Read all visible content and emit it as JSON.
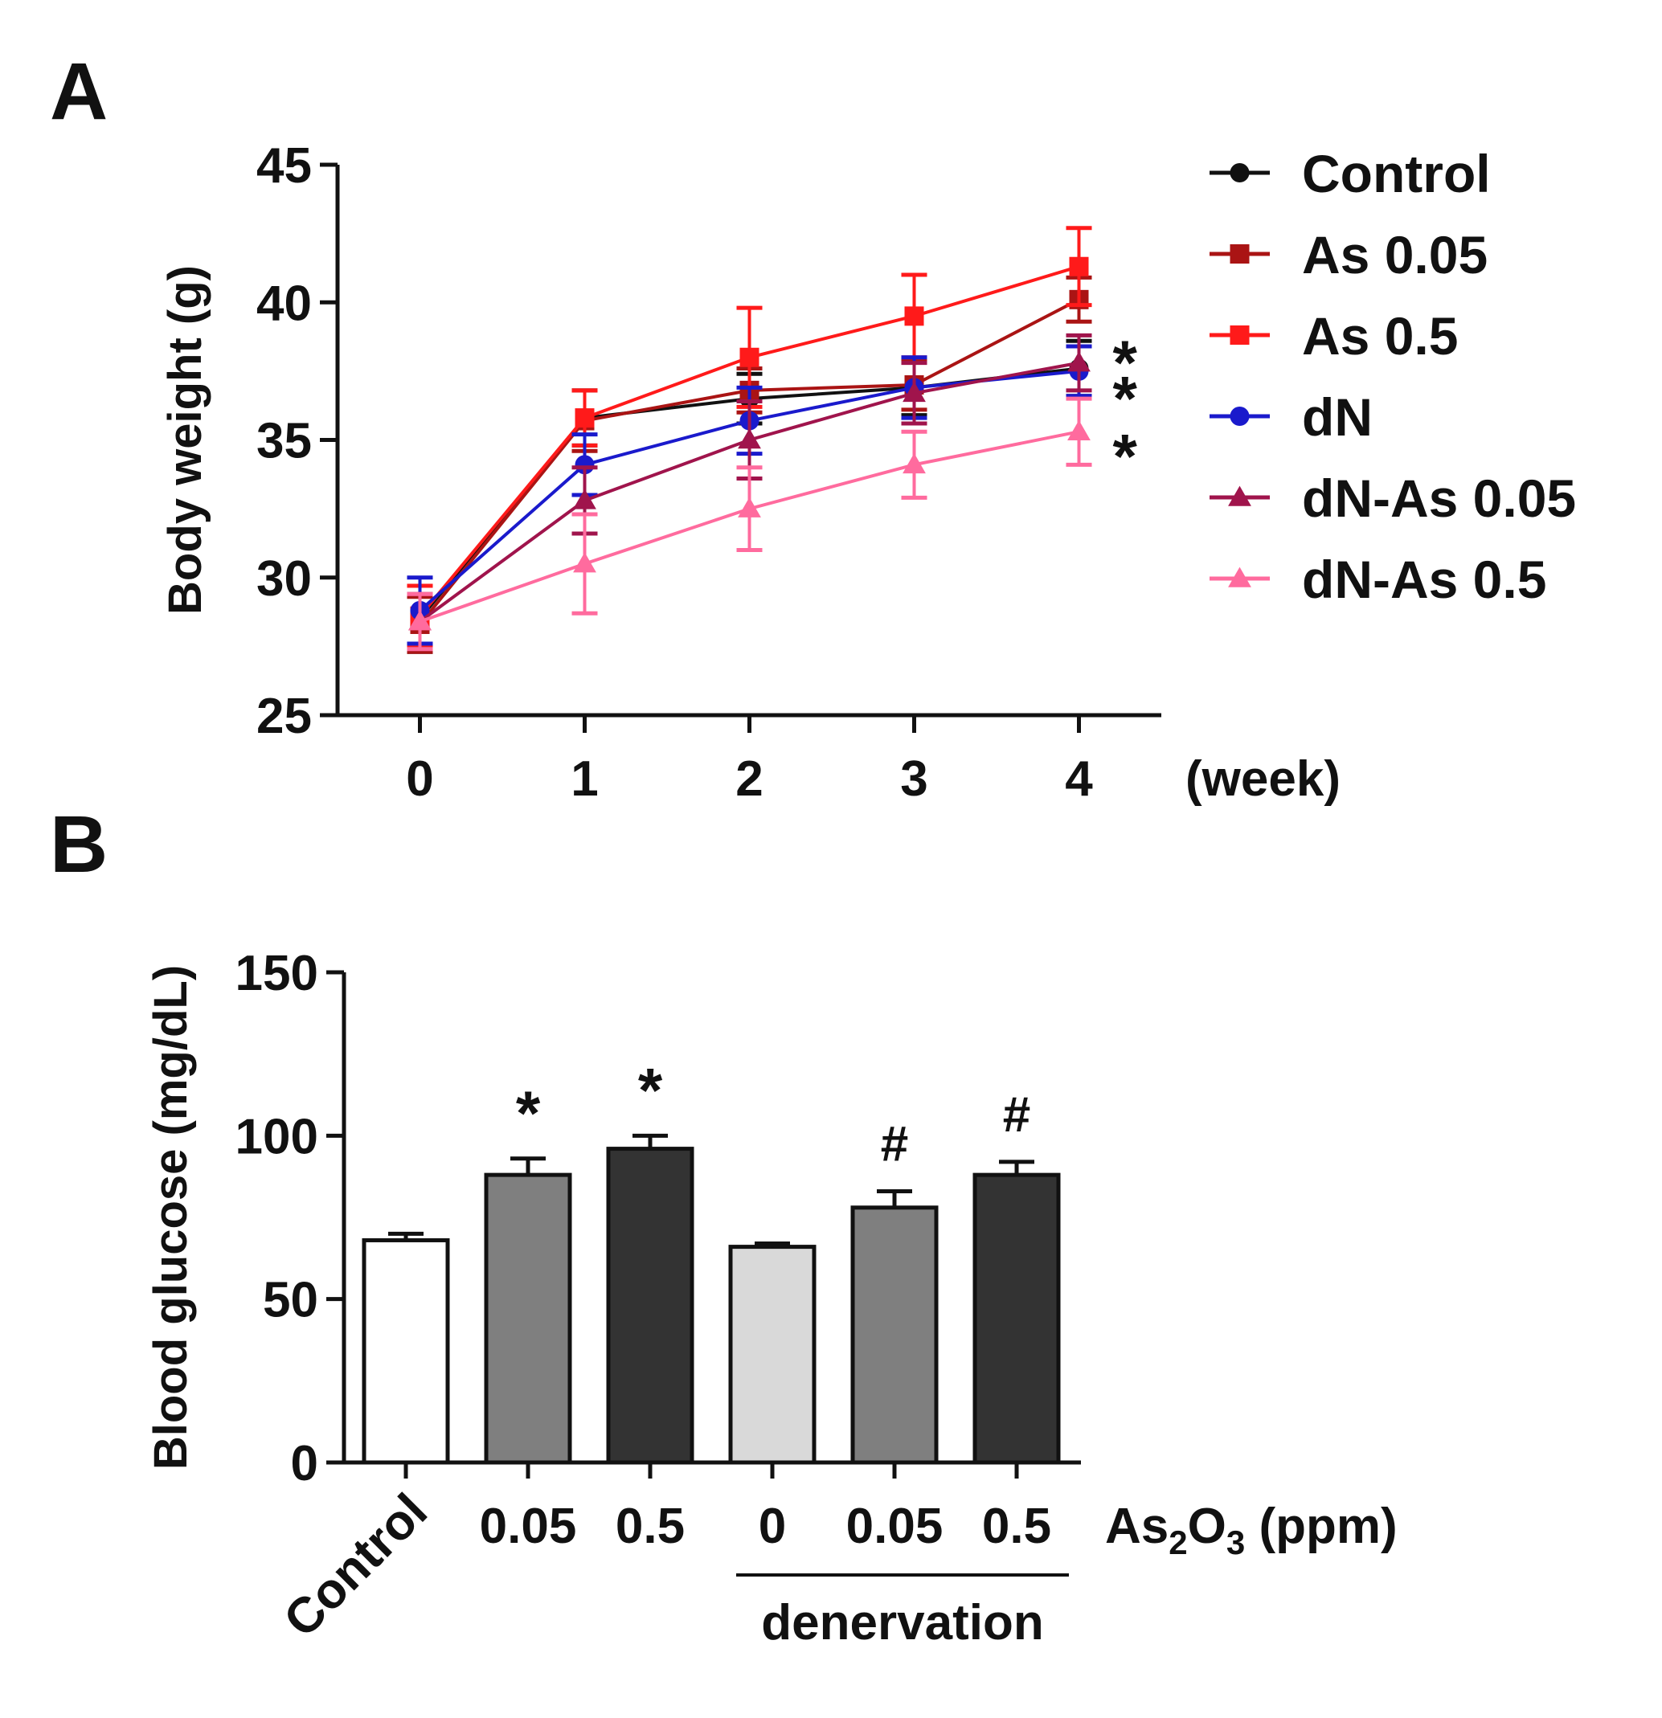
{
  "panels": [
    "A",
    "B"
  ],
  "chart_data": [
    {
      "type": "line",
      "panel": "A",
      "ylabel": "Body weight (g)",
      "xlabel": "(week)",
      "x": [
        0,
        1,
        2,
        3,
        4
      ],
      "xlim": [
        -0.5,
        4.5
      ],
      "ylim": [
        25,
        45
      ],
      "yticks": [
        25,
        30,
        35,
        40,
        45
      ],
      "xticks": [
        0,
        1,
        2,
        3,
        4
      ],
      "grid": false,
      "legend_position": "right",
      "series": [
        {
          "name": "Control",
          "color": "#111111",
          "marker": "circle",
          "values": [
            28.5,
            35.8,
            36.5,
            36.9,
            37.6
          ],
          "err": [
            1.2,
            1.0,
            0.9,
            1.0,
            1.0
          ]
        },
        {
          "name": "As 0.05",
          "color": "#aa1414",
          "marker": "square",
          "values": [
            28.3,
            35.7,
            36.8,
            37.0,
            40.1
          ],
          "err": [
            1.0,
            1.1,
            0.8,
            0.9,
            0.8
          ]
        },
        {
          "name": "As 0.5",
          "color": "#ff1a1a",
          "marker": "square",
          "values": [
            28.6,
            35.8,
            38.0,
            39.5,
            41.3
          ],
          "err": [
            1.1,
            1.0,
            1.8,
            1.5,
            1.4
          ]
        },
        {
          "name": "dN",
          "color": "#1a1acc",
          "marker": "circle",
          "values": [
            28.8,
            34.1,
            35.7,
            36.9,
            37.5
          ],
          "err": [
            1.2,
            1.1,
            1.2,
            1.1,
            0.9
          ]
        },
        {
          "name": "dN-As 0.05",
          "color": "#a0144c",
          "marker": "triangle",
          "values": [
            28.4,
            32.8,
            35.0,
            36.7,
            37.8
          ],
          "err": [
            1.0,
            1.2,
            1.4,
            1.1,
            1.0
          ]
        },
        {
          "name": "dN-As 0.5",
          "color": "#ff6b9e",
          "marker": "triangle",
          "values": [
            28.4,
            30.5,
            32.5,
            34.1,
            35.3
          ],
          "err": [
            1.0,
            1.8,
            1.5,
            1.2,
            1.2
          ]
        }
      ],
      "annotations": [
        {
          "text": "*",
          "x": 4,
          "y": 38.2
        },
        {
          "text": "*",
          "x": 4,
          "y": 36.9
        },
        {
          "text": "*",
          "x": 4,
          "y": 34.8
        }
      ]
    },
    {
      "type": "bar",
      "panel": "B",
      "ylabel": "Blood glucose (mg/dL)",
      "xlabel_parts": {
        "base": "As",
        "sub1": "2",
        "mid": "O",
        "sub2": "3",
        "tail": " (ppm)"
      },
      "ylim": [
        0,
        150
      ],
      "yticks": [
        0,
        50,
        100,
        150
      ],
      "grid": false,
      "categories": [
        "Control",
        "0.05",
        "0.5",
        "0",
        "0.05",
        "0.5"
      ],
      "values": [
        68,
        88,
        96,
        66,
        78,
        88
      ],
      "err": [
        2,
        5,
        4,
        1,
        5,
        4
      ],
      "colors": [
        "#ffffff",
        "#7f7f7f",
        "#333333",
        "#d9d9d9",
        "#7f7f7f",
        "#333333"
      ],
      "annotations": [
        "",
        "*",
        "*",
        "",
        "#",
        "#"
      ],
      "group_label": "denervation",
      "group_span": [
        3,
        5
      ]
    }
  ]
}
